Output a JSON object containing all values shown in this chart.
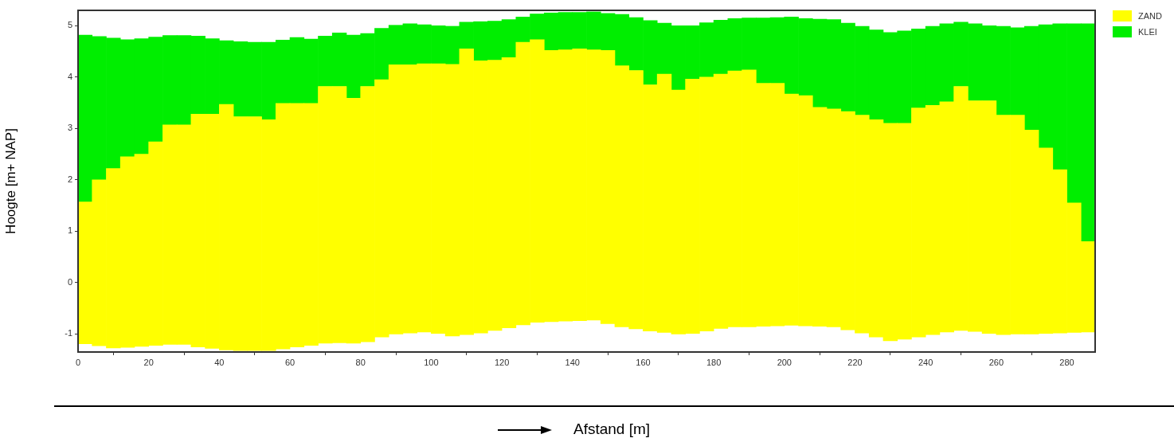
{
  "chart_data": {
    "type": "bar",
    "xlabel": "Afstand [m]",
    "ylabel": "Hoogte [m+ NAP]",
    "legend": "top right",
    "xlim": [
      0,
      288
    ],
    "xticks": [
      0,
      20,
      40,
      60,
      80,
      100,
      120,
      140,
      160,
      180,
      200,
      220,
      240,
      260,
      280
    ],
    "ylim": [
      -1.35,
      5.3
    ],
    "yticks": [
      -1,
      0,
      1,
      2,
      3,
      4,
      5
    ],
    "x": [
      2,
      6,
      10,
      14,
      18,
      22,
      26,
      30,
      34,
      38,
      42,
      46,
      50,
      54,
      58,
      62,
      66,
      70,
      74,
      78,
      82,
      86,
      90,
      94,
      98,
      102,
      106,
      110,
      114,
      118,
      122,
      126,
      130,
      134,
      138,
      142,
      146,
      150,
      154,
      158,
      162,
      166,
      170,
      174,
      178,
      182,
      186,
      190,
      194,
      198,
      202,
      206,
      210,
      214,
      218,
      222,
      226,
      230,
      234,
      238,
      242,
      246,
      250,
      254,
      258,
      262,
      266,
      270,
      274,
      278,
      282,
      286
    ],
    "series": [
      {
        "name": "ZAND",
        "color": "#ffff00",
        "base": [
          -1.19,
          -1.23,
          -1.27,
          -1.26,
          -1.24,
          -1.22,
          -1.2,
          -1.2,
          -1.25,
          -1.28,
          -1.31,
          -1.32,
          -1.32,
          -1.32,
          -1.29,
          -1.25,
          -1.22,
          -1.18,
          -1.17,
          -1.18,
          -1.15,
          -1.06,
          -1.0,
          -0.98,
          -0.96,
          -0.99,
          -1.04,
          -1.01,
          -0.98,
          -0.93,
          -0.88,
          -0.82,
          -0.77,
          -0.76,
          -0.75,
          -0.74,
          -0.73,
          -0.8,
          -0.86,
          -0.9,
          -0.94,
          -0.97,
          -1.0,
          -0.99,
          -0.94,
          -0.89,
          -0.86,
          -0.86,
          -0.85,
          -0.84,
          -0.83,
          -0.84,
          -0.85,
          -0.86,
          -0.92,
          -0.98,
          -1.06,
          -1.13,
          -1.1,
          -1.06,
          -1.01,
          -0.96,
          -0.93,
          -0.95,
          -0.99,
          -1.01,
          -1.0,
          -1.0,
          -0.99,
          -0.98,
          -0.97,
          -0.96
        ],
        "values": [
          2.76,
          3.23,
          3.49,
          3.71,
          3.74,
          3.96,
          4.27,
          4.27,
          4.53,
          4.56,
          4.78,
          4.55,
          4.55,
          4.49,
          4.78,
          4.74,
          4.71,
          5.0,
          4.99,
          4.77,
          4.97,
          5.01,
          5.24,
          5.22,
          5.22,
          5.25,
          5.29,
          5.56,
          5.3,
          5.26,
          5.26,
          5.5,
          5.5,
          5.28,
          5.28,
          5.29,
          5.26,
          5.32,
          5.08,
          5.03,
          4.79,
          5.03,
          4.75,
          4.95,
          4.94,
          4.95,
          4.98,
          5.0,
          4.73,
          4.72,
          4.5,
          4.48,
          4.26,
          4.24,
          4.25,
          4.24,
          4.23,
          4.23,
          4.2,
          4.46,
          4.46,
          4.48,
          4.75,
          4.49,
          4.53,
          4.27,
          4.26,
          3.97,
          3.61,
          3.18,
          2.52,
          1.76
        ]
      },
      {
        "name": "KLEI",
        "color": "#00ee00",
        "base": [
          1.57,
          2.0,
          2.22,
          2.45,
          2.5,
          2.74,
          3.07,
          3.07,
          3.28,
          3.28,
          3.47,
          3.23,
          3.23,
          3.17,
          3.49,
          3.49,
          3.49,
          3.82,
          3.82,
          3.59,
          3.82,
          3.95,
          4.24,
          4.24,
          4.26,
          4.26,
          4.25,
          4.55,
          4.32,
          4.33,
          4.38,
          4.68,
          4.73,
          4.52,
          4.53,
          4.55,
          4.53,
          4.52,
          4.22,
          4.13,
          3.85,
          4.06,
          3.75,
          3.96,
          4.0,
          4.06,
          4.12,
          4.14,
          3.88,
          3.88,
          3.67,
          3.64,
          3.41,
          3.38,
          3.33,
          3.26,
          3.17,
          3.1,
          3.1,
          3.4,
          3.45,
          3.52,
          3.82,
          3.54,
          3.54,
          3.26,
          3.26,
          2.97,
          2.62,
          2.2,
          1.55,
          0.8
        ],
        "values": [
          3.25,
          2.79,
          2.54,
          2.28,
          2.25,
          2.04,
          1.74,
          1.74,
          1.52,
          1.47,
          1.24,
          1.46,
          1.45,
          1.51,
          1.23,
          1.28,
          1.25,
          0.98,
          1.04,
          1.23,
          1.03,
          1.0,
          0.77,
          0.8,
          0.76,
          0.74,
          0.74,
          0.52,
          0.76,
          0.76,
          0.74,
          0.49,
          0.5,
          0.73,
          0.73,
          0.71,
          0.74,
          0.72,
          1.0,
          1.03,
          1.25,
          0.99,
          1.25,
          1.04,
          1.06,
          1.05,
          1.02,
          1.01,
          1.27,
          1.28,
          1.5,
          1.5,
          1.72,
          1.74,
          1.72,
          1.73,
          1.75,
          1.77,
          1.8,
          1.54,
          1.54,
          1.52,
          1.25,
          1.5,
          1.46,
          1.73,
          1.7,
          2.02,
          2.4,
          2.84,
          3.49,
          4.24
        ]
      }
    ]
  }
}
